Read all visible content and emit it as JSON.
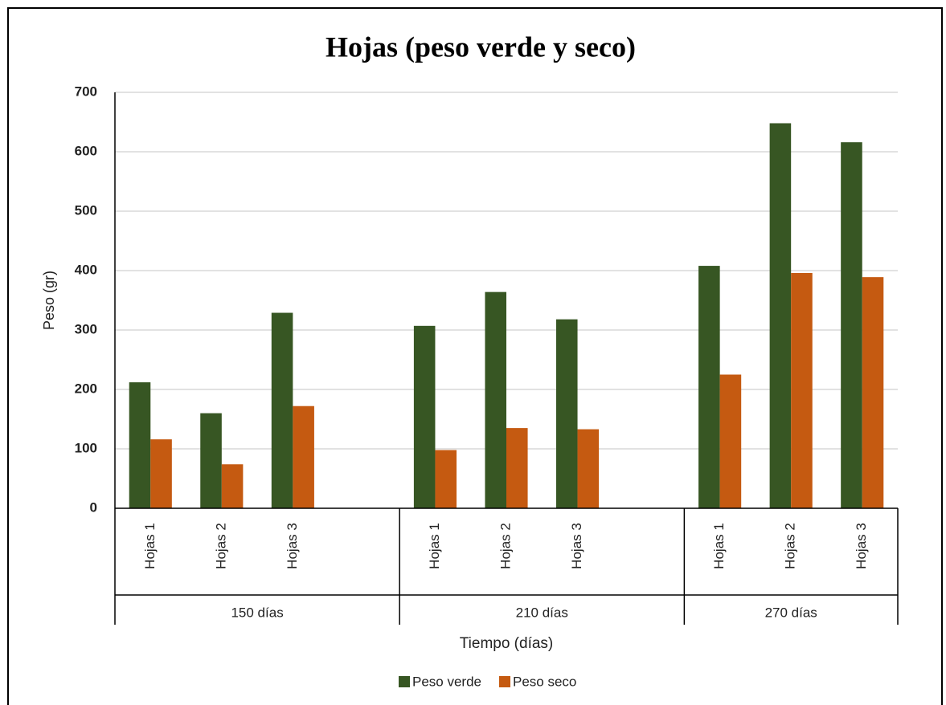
{
  "chart_data": {
    "type": "bar",
    "title": "Hojas (peso verde y seco)",
    "xlabel": "Tiempo (días)",
    "ylabel": "Peso (gr)",
    "categories": [
      "Hojas 1",
      "Hojas 2",
      "Hojas 3",
      null,
      "Hojas 1",
      "Hojas 2",
      "Hojas 3",
      null,
      "Hojas 1",
      "Hojas 2",
      "Hojas 3"
    ],
    "groups": [
      "150 días",
      "210 días",
      "270 días"
    ],
    "series": [
      {
        "name": "Peso verde",
        "color": "#375623",
        "values": [
          212,
          160,
          329,
          null,
          307,
          364,
          318,
          null,
          408,
          648,
          616
        ]
      },
      {
        "name": "Peso seco",
        "color": "#c55a11",
        "values": [
          116,
          74,
          172,
          null,
          98,
          135,
          133,
          null,
          225,
          396,
          389
        ]
      }
    ],
    "ylim": [
      0,
      700
    ],
    "yticks": [
      0,
      100,
      200,
      300,
      400,
      500,
      600,
      700
    ],
    "grid": true,
    "legend": "bottom"
  }
}
